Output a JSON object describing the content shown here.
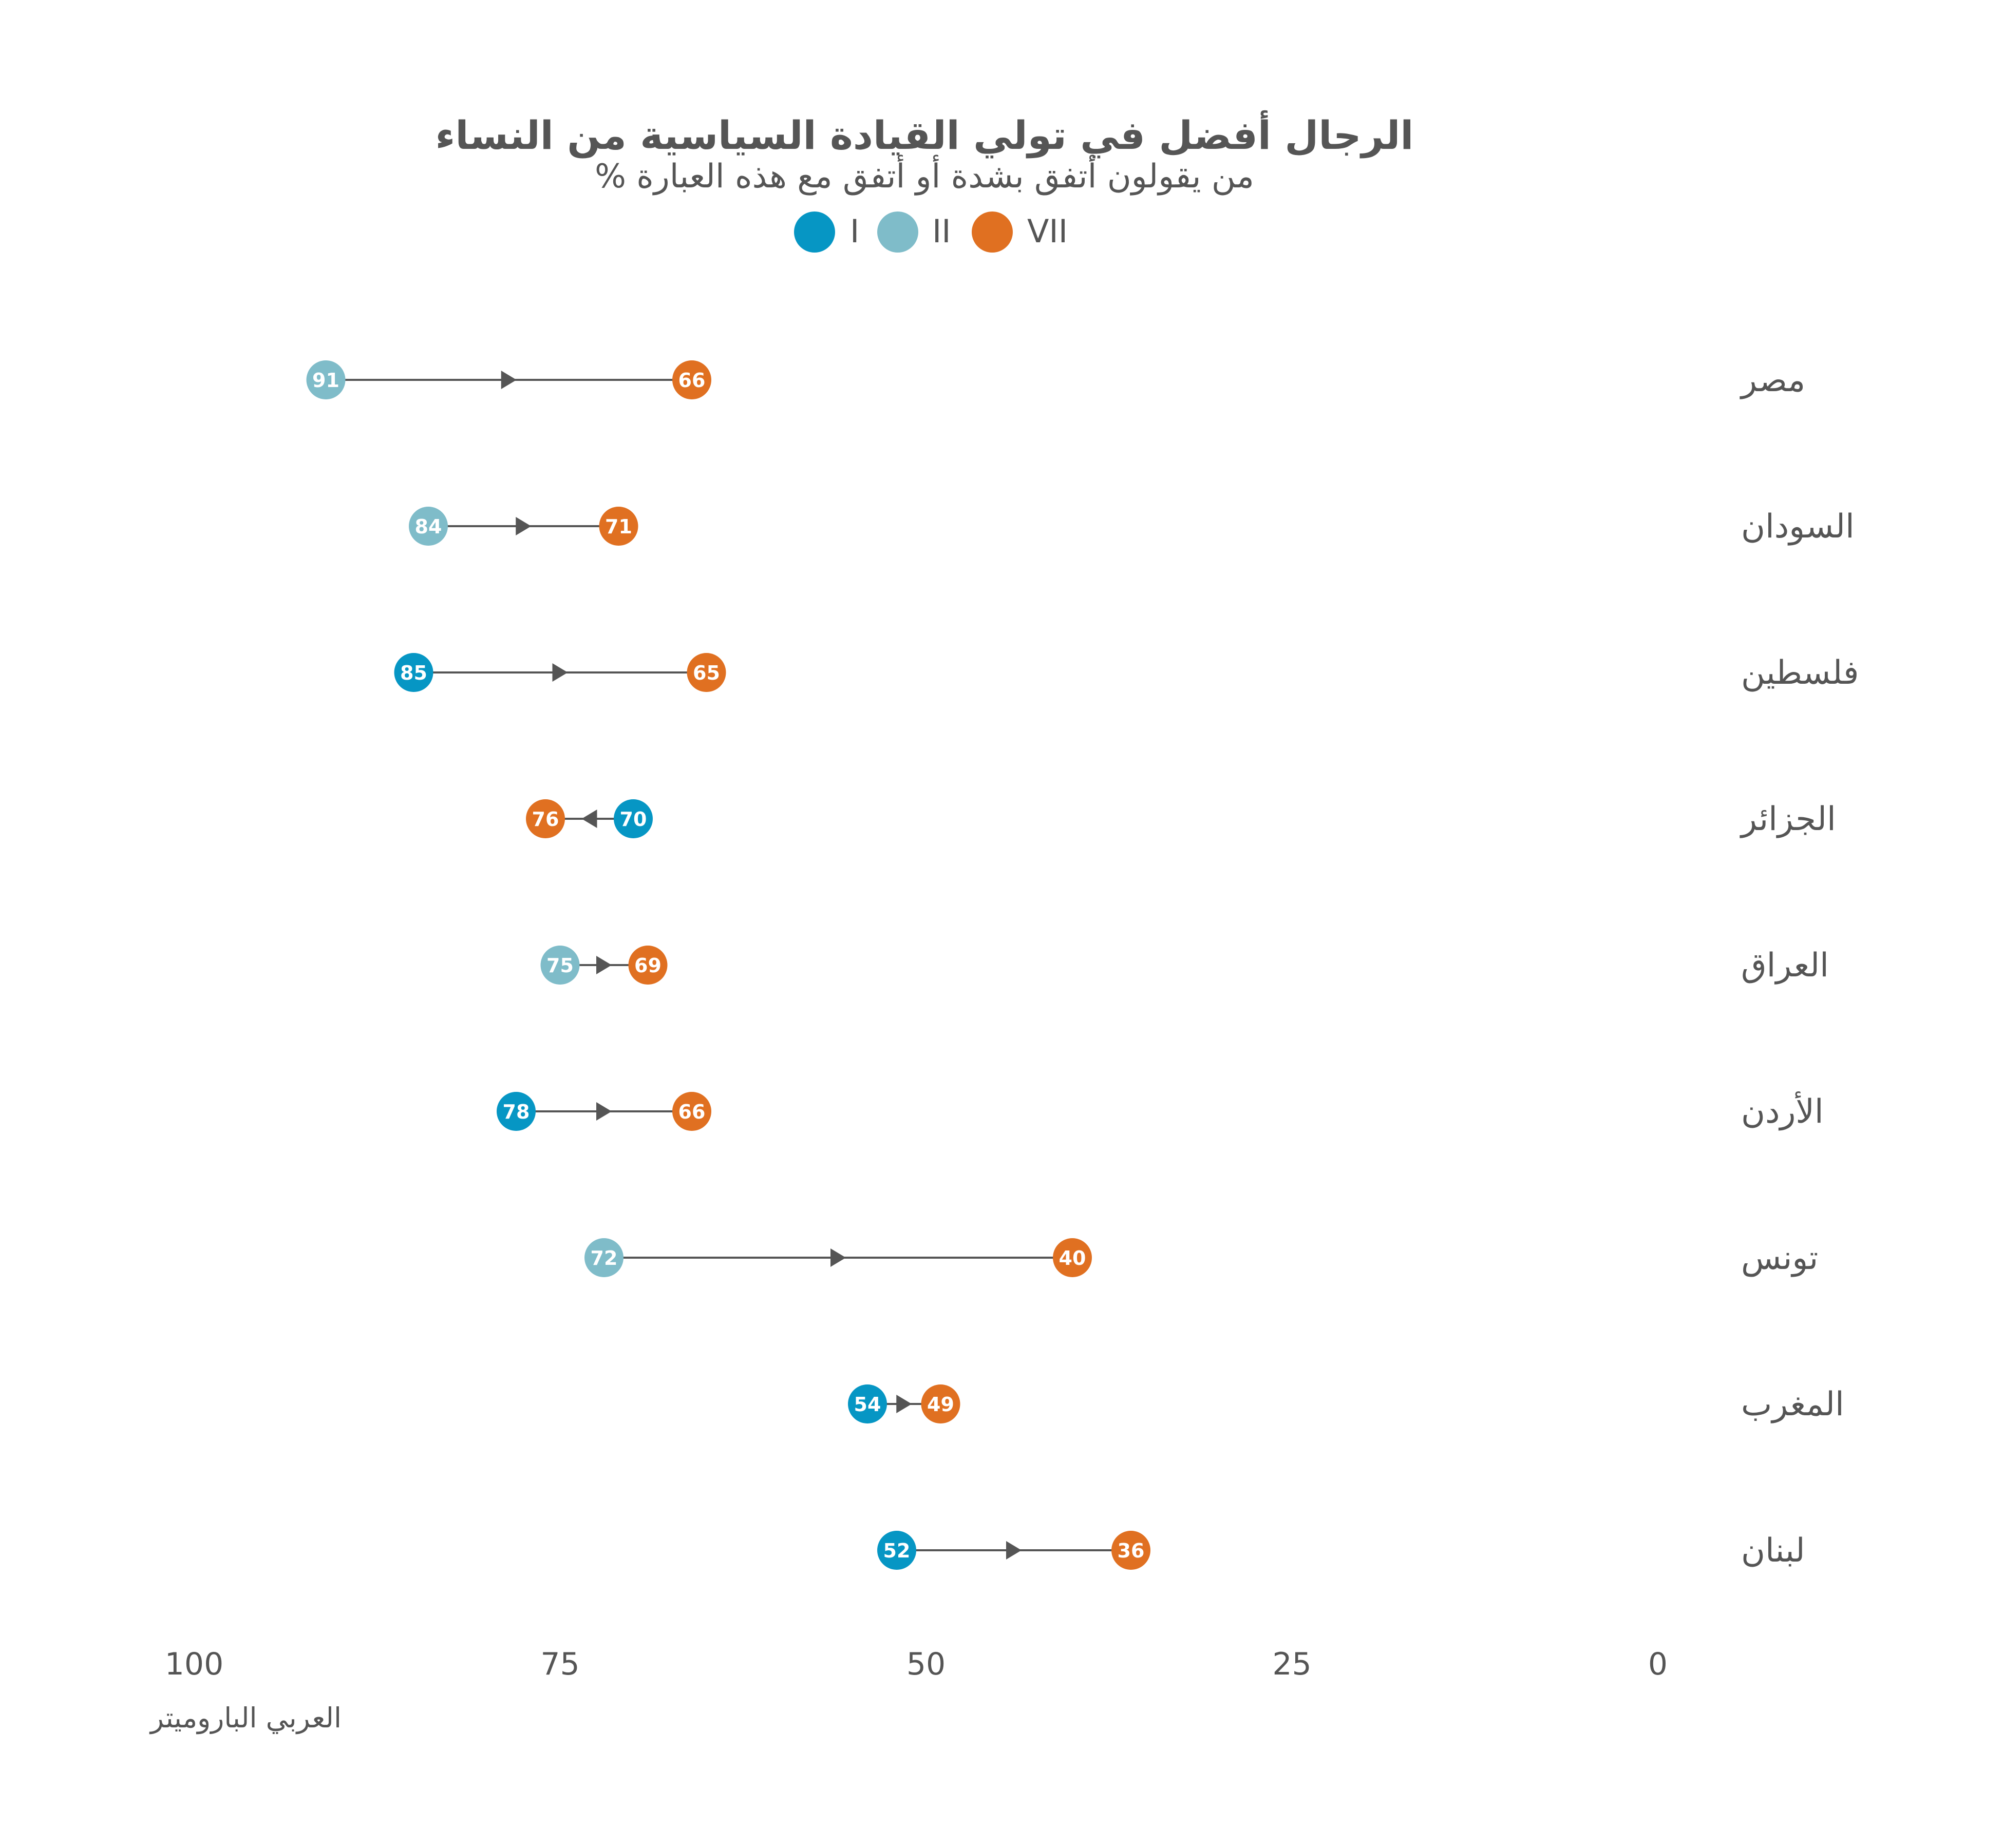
{
  "chart_data": {
    "type": "dumbbell",
    "title": "الرجال أفضل في تولي القيادة السياسية من النساء",
    "subtitle": "% من يقولون أتفق بشدة أو أتفق مع هذه العبارة",
    "legend": [
      {
        "label": "I",
        "color": "#0696c4"
      },
      {
        "label": "II",
        "color": "#7fbcc9"
      },
      {
        "label": "VII",
        "color": "#e07021"
      }
    ],
    "x_axis": {
      "reversed": true,
      "range": [
        0,
        100
      ],
      "ticks": [
        100,
        75,
        50,
        25,
        0
      ]
    },
    "rows": [
      {
        "country": "مصر",
        "from": {
          "wave": "II",
          "value": 91
        },
        "to": {
          "wave": "VII",
          "value": 66
        }
      },
      {
        "country": "السودان",
        "from": {
          "wave": "II",
          "value": 84
        },
        "to": {
          "wave": "VII",
          "value": 71
        }
      },
      {
        "country": "فلسطين",
        "from": {
          "wave": "I",
          "value": 85
        },
        "to": {
          "wave": "VII",
          "value": 65
        }
      },
      {
        "country": "الجزائر",
        "from": {
          "wave": "I",
          "value": 70
        },
        "to": {
          "wave": "VII",
          "value": 76
        }
      },
      {
        "country": "العراق",
        "from": {
          "wave": "II",
          "value": 75
        },
        "to": {
          "wave": "VII",
          "value": 69
        }
      },
      {
        "country": "الأردن",
        "from": {
          "wave": "I",
          "value": 78
        },
        "to": {
          "wave": "VII",
          "value": 66
        }
      },
      {
        "country": "تونس",
        "from": {
          "wave": "II",
          "value": 72
        },
        "to": {
          "wave": "VII",
          "value": 40
        }
      },
      {
        "country": "المغرب",
        "from": {
          "wave": "I",
          "value": 54
        },
        "to": {
          "wave": "VII",
          "value": 49
        }
      },
      {
        "country": "لبنان",
        "from": {
          "wave": "I",
          "value": 52
        },
        "to": {
          "wave": "VII",
          "value": 36
        }
      }
    ],
    "source": "العربي الباروميتر"
  },
  "colors": {
    "line": "#555555",
    "text": "#555555"
  }
}
